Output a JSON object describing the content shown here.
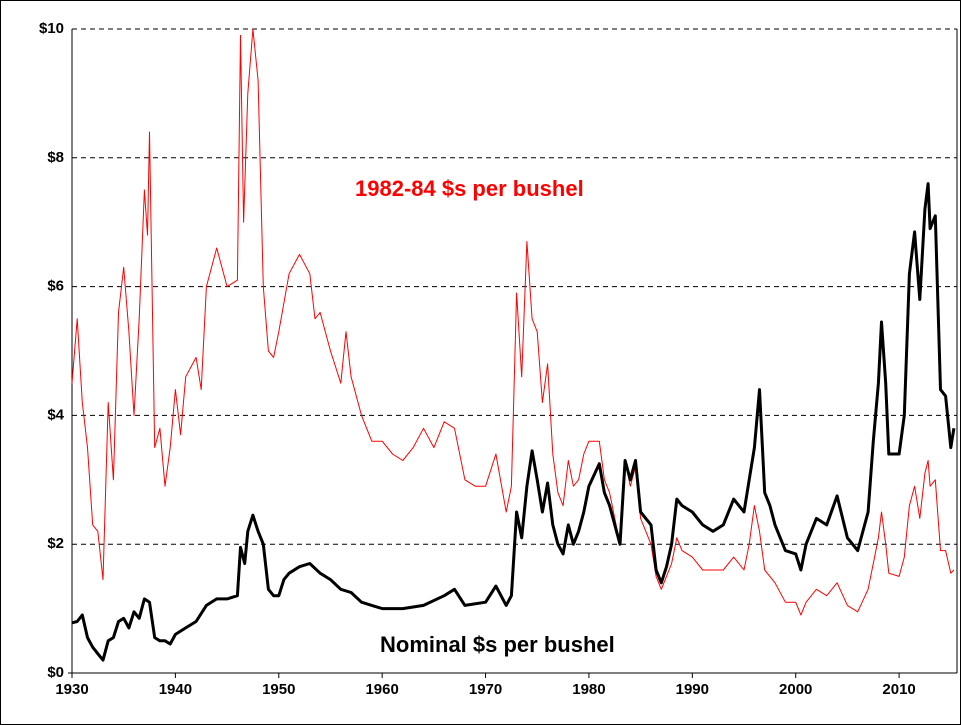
{
  "chart_data": {
    "type": "line",
    "xlim": [
      1930,
      2015.6
    ],
    "xticks": [
      1930,
      1940,
      1950,
      1960,
      1970,
      1980,
      1990,
      2000,
      2010
    ],
    "ylim": [
      0,
      10
    ],
    "yticks": [
      {
        "value": 0,
        "label": "$0"
      },
      {
        "value": 2,
        "label": "$2"
      },
      {
        "value": 4,
        "label": "$4"
      },
      {
        "value": 6,
        "label": "$6"
      },
      {
        "value": 8,
        "label": "$8"
      },
      {
        "value": 10,
        "label": "$10"
      }
    ],
    "grid": true,
    "series": [
      {
        "name": "1982-84 $s per bushel",
        "color": "#ff0000",
        "x": [
          1930,
          1930.5,
          1931,
          1931.5,
          1932,
          1932.5,
          1933,
          1933.5,
          1934,
          1934.5,
          1935,
          1935.5,
          1936,
          1936.5,
          1937,
          1937.3,
          1937.5,
          1938,
          1938.5,
          1939,
          1939.5,
          1940,
          1940.5,
          1941,
          1942,
          1942.5,
          1943,
          1944,
          1945,
          1946,
          1946.3,
          1946.6,
          1947,
          1947.5,
          1948,
          1948.5,
          1949,
          1949.5,
          1950,
          1951,
          1952,
          1953,
          1953.5,
          1954,
          1955,
          1956,
          1956.5,
          1957,
          1958,
          1959,
          1960,
          1961,
          1962,
          1963,
          1964,
          1965,
          1966,
          1967,
          1968,
          1969,
          1970,
          1971,
          1972,
          1972.5,
          1973,
          1973.5,
          1974,
          1974.5,
          1975,
          1975.5,
          1976,
          1976.5,
          1977,
          1977.5,
          1978,
          1978.5,
          1979,
          1979.5,
          1980,
          1981,
          1981.5,
          1982,
          1983,
          1983.5,
          1984,
          1984.5,
          1985,
          1986,
          1986.5,
          1987,
          1987.5,
          1988,
          1988.5,
          1989,
          1990,
          1991,
          1992,
          1993,
          1994,
          1995,
          1995.5,
          1996,
          1996.5,
          1997,
          1998,
          1999,
          2000,
          2000.5,
          2001,
          2002,
          2003,
          2004,
          2005,
          2006,
          2007,
          2007.5,
          2008,
          2008.3,
          2008.7,
          2009,
          2010,
          2010.5,
          2011,
          2011.5,
          2012,
          2012.5,
          2012.8,
          2013,
          2013.5,
          2014,
          2014.5,
          2015,
          2015.3
        ],
        "values": [
          4.5,
          5.5,
          4.2,
          3.5,
          2.3,
          2.2,
          1.45,
          4.2,
          3.0,
          5.6,
          6.3,
          5.3,
          4.0,
          5.5,
          7.5,
          6.8,
          8.4,
          3.5,
          3.8,
          2.9,
          3.5,
          4.4,
          3.7,
          4.6,
          4.9,
          4.4,
          6.0,
          6.6,
          6.0,
          6.1,
          9.9,
          7.0,
          9.0,
          10.0,
          9.2,
          6.0,
          5.0,
          4.9,
          5.3,
          6.2,
          6.5,
          6.2,
          5.5,
          5.6,
          5.0,
          4.5,
          5.3,
          4.6,
          4.0,
          3.6,
          3.6,
          3.4,
          3.3,
          3.5,
          3.8,
          3.5,
          3.9,
          3.8,
          3.0,
          2.9,
          2.9,
          3.4,
          2.5,
          2.9,
          5.9,
          4.6,
          6.7,
          5.5,
          5.3,
          4.2,
          4.8,
          3.4,
          2.8,
          2.6,
          3.3,
          2.9,
          3.0,
          3.4,
          3.6,
          3.6,
          3.0,
          2.8,
          2.0,
          3.3,
          2.9,
          3.2,
          2.4,
          2.0,
          1.5,
          1.3,
          1.5,
          1.7,
          2.1,
          1.9,
          1.8,
          1.6,
          1.6,
          1.6,
          1.8,
          1.6,
          2.0,
          2.6,
          2.2,
          1.6,
          1.4,
          1.1,
          1.1,
          0.9,
          1.1,
          1.3,
          1.2,
          1.4,
          1.05,
          0.95,
          1.3,
          1.7,
          2.1,
          2.5,
          2.0,
          1.55,
          1.5,
          1.8,
          2.6,
          2.9,
          2.4,
          3.1,
          3.3,
          2.9,
          3.0,
          1.9,
          1.9,
          1.55,
          1.6
        ]
      },
      {
        "name": "Nominal $s per bushel",
        "color": "#000000",
        "x": [
          1930,
          1930.5,
          1931,
          1931.5,
          1932,
          1932.5,
          1933,
          1933.5,
          1934,
          1934.5,
          1935,
          1935.5,
          1936,
          1936.5,
          1937,
          1937.5,
          1938,
          1938.5,
          1939,
          1939.5,
          1940,
          1941,
          1942,
          1943,
          1944,
          1945,
          1946,
          1946.3,
          1946.7,
          1947,
          1947.5,
          1948,
          1948.5,
          1949,
          1949.5,
          1950,
          1950.5,
          1951,
          1952,
          1953,
          1954,
          1955,
          1956,
          1957,
          1958,
          1959,
          1960,
          1962,
          1964,
          1966,
          1967,
          1968,
          1970,
          1971,
          1972,
          1972.5,
          1973,
          1973.5,
          1974,
          1974.5,
          1975,
          1975.5,
          1976,
          1976.5,
          1977,
          1977.5,
          1978,
          1978.5,
          1979,
          1979.5,
          1980,
          1981,
          1981.5,
          1982,
          1983,
          1983.5,
          1984,
          1984.5,
          1985,
          1986,
          1986.5,
          1987,
          1987.5,
          1988,
          1988.5,
          1989,
          1990,
          1991,
          1992,
          1993,
          1994,
          1995,
          1995.5,
          1996,
          1996.5,
          1997,
          1997.5,
          1998,
          1999,
          2000,
          2000.5,
          2001,
          2002,
          2003,
          2004,
          2005,
          2006,
          2007,
          2007.5,
          2008,
          2008.3,
          2008.7,
          2009,
          2010,
          2010.5,
          2011,
          2011.5,
          2012,
          2012.5,
          2012.8,
          2013,
          2013.5,
          2014,
          2014.5,
          2015,
          2015.3
        ],
        "values": [
          0.78,
          0.8,
          0.9,
          0.55,
          0.4,
          0.3,
          0.2,
          0.5,
          0.55,
          0.8,
          0.85,
          0.7,
          0.95,
          0.85,
          1.15,
          1.1,
          0.55,
          0.5,
          0.5,
          0.45,
          0.6,
          0.7,
          0.8,
          1.05,
          1.15,
          1.15,
          1.2,
          1.95,
          1.7,
          2.2,
          2.45,
          2.2,
          2.0,
          1.3,
          1.2,
          1.2,
          1.45,
          1.55,
          1.65,
          1.7,
          1.55,
          1.45,
          1.3,
          1.25,
          1.1,
          1.05,
          1.0,
          1.0,
          1.05,
          1.2,
          1.3,
          1.05,
          1.1,
          1.35,
          1.05,
          1.2,
          2.5,
          2.1,
          2.9,
          3.45,
          3.0,
          2.5,
          2.95,
          2.3,
          2.0,
          1.85,
          2.3,
          2.0,
          2.2,
          2.5,
          2.9,
          3.25,
          2.8,
          2.6,
          2.0,
          3.3,
          3.0,
          3.3,
          2.5,
          2.3,
          1.6,
          1.4,
          1.65,
          2.0,
          2.7,
          2.6,
          2.5,
          2.3,
          2.2,
          2.3,
          2.7,
          2.5,
          3.0,
          3.5,
          4.4,
          2.8,
          2.6,
          2.3,
          1.9,
          1.85,
          1.6,
          2.0,
          2.4,
          2.3,
          2.75,
          2.1,
          1.9,
          2.5,
          3.6,
          4.5,
          5.45,
          4.5,
          3.4,
          3.4,
          4.0,
          6.2,
          6.85,
          5.8,
          7.2,
          7.6,
          6.9,
          7.1,
          4.4,
          4.3,
          3.5,
          3.8
        ]
      }
    ]
  }
}
